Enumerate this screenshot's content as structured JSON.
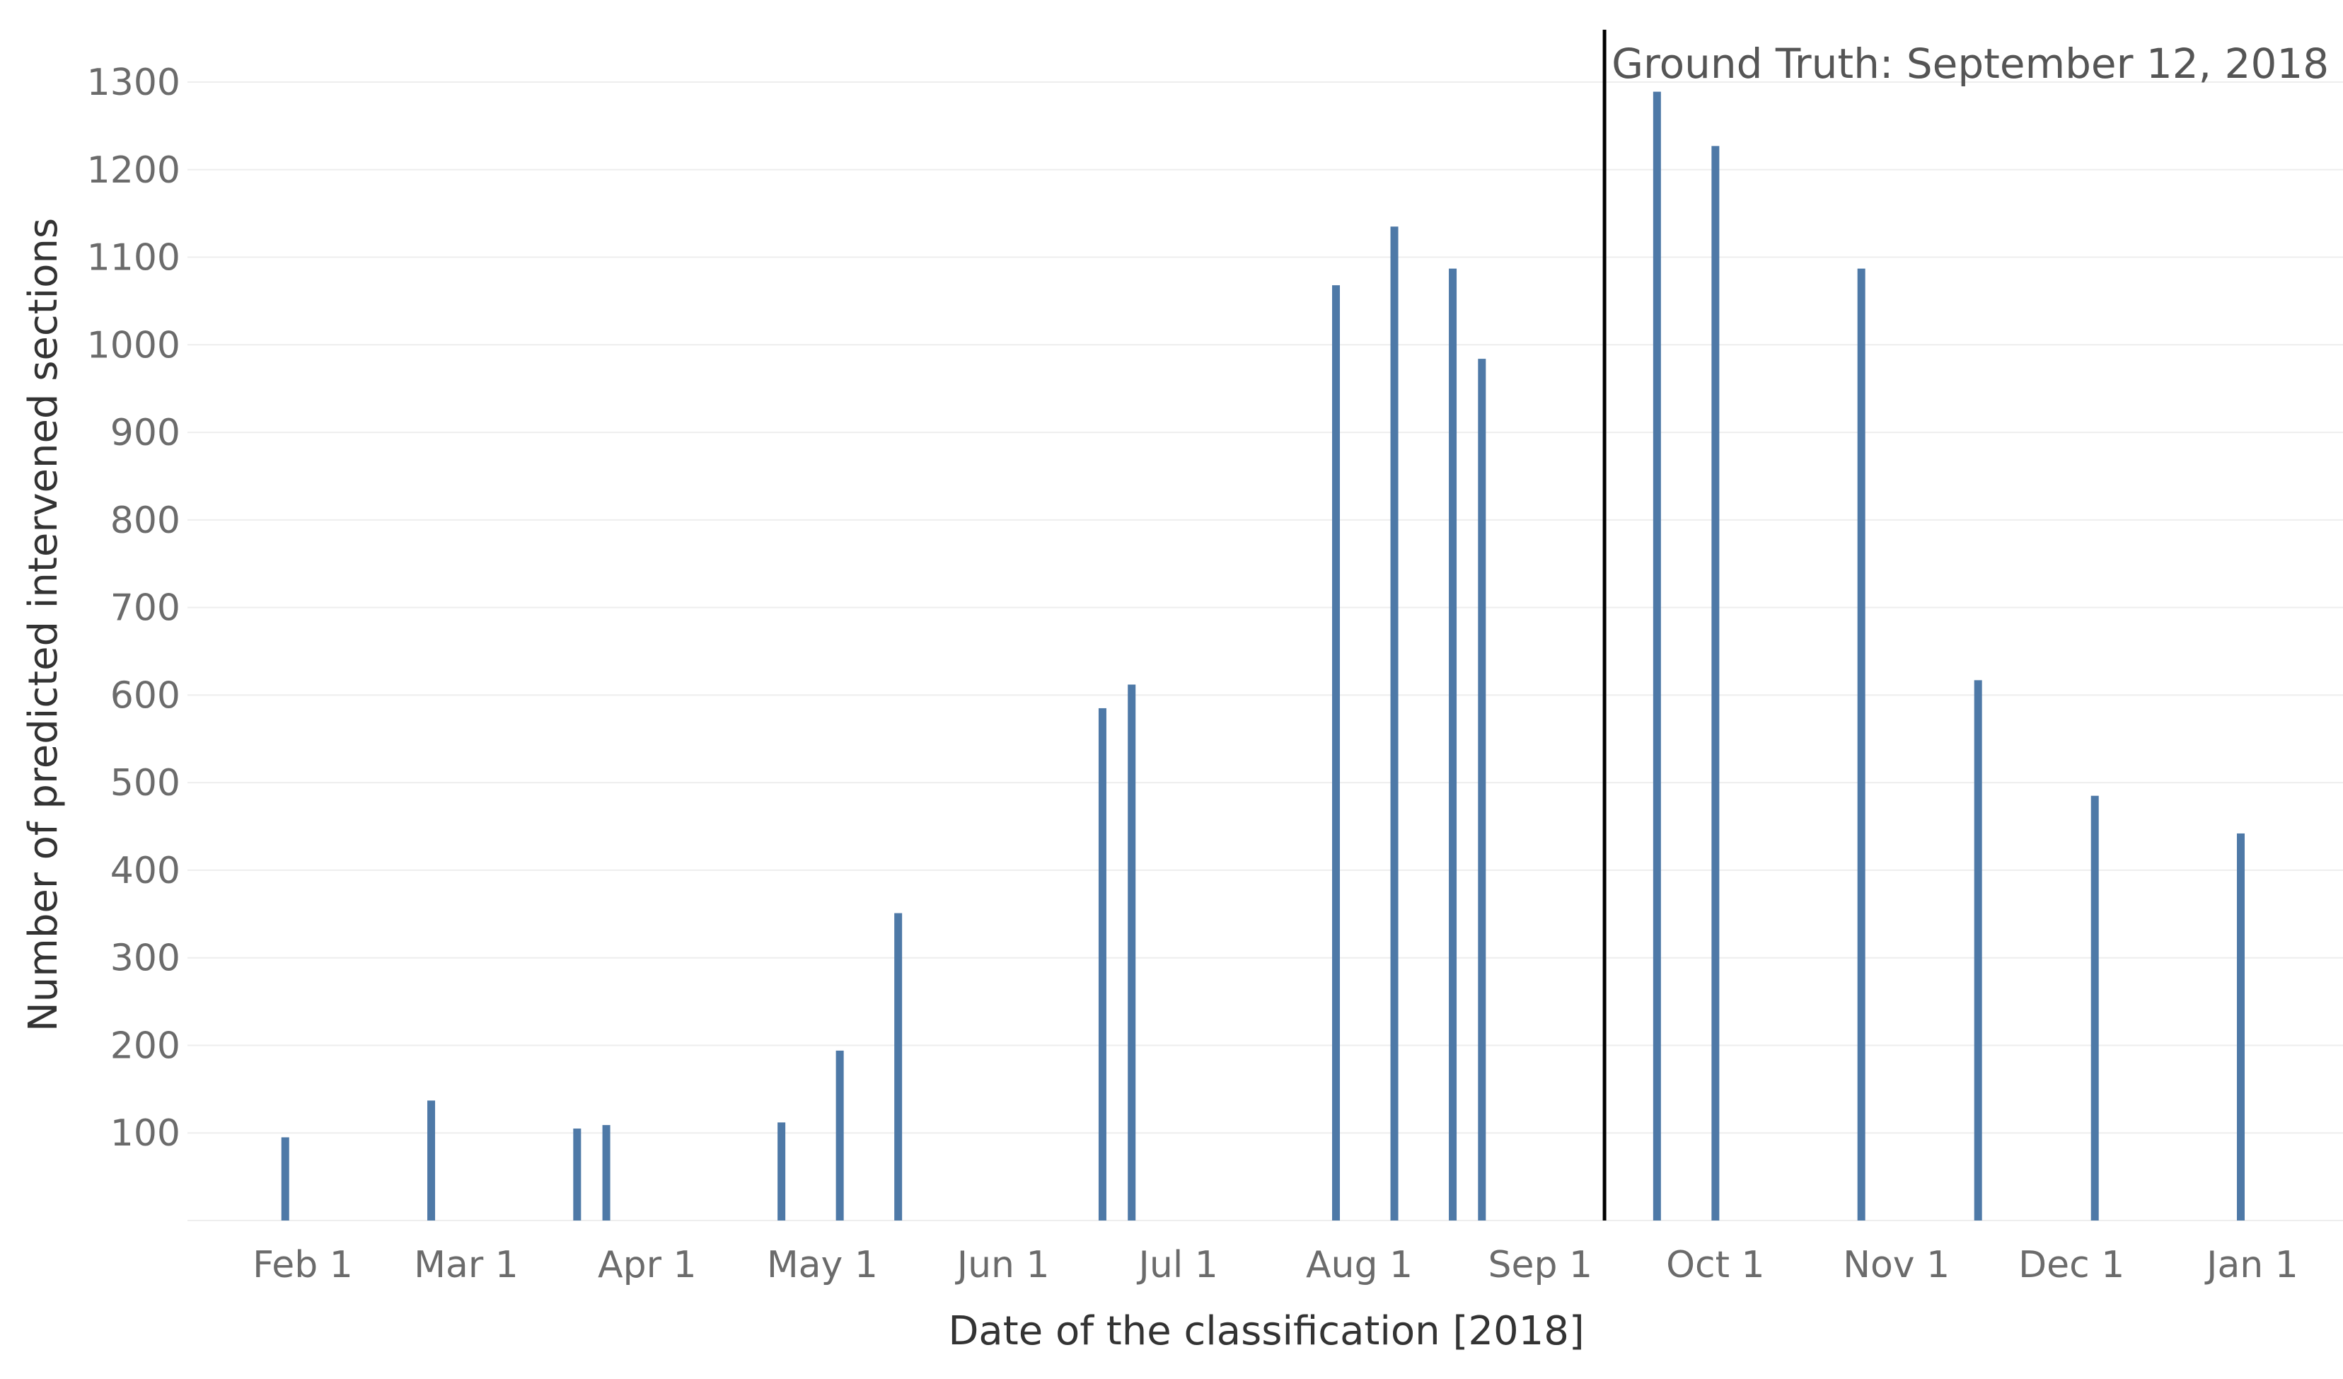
{
  "chart_data": {
    "type": "bar",
    "title": "",
    "xlabel": "Date of the classification [2018]",
    "ylabel": "Number of predicted intervened sections",
    "x_axis": {
      "type": "date",
      "range": [
        "2018-01-10",
        "2018-01-12"
      ],
      "ticks": [
        {
          "date": "2018-02-01",
          "label": "Feb 1"
        },
        {
          "date": "2018-03-01",
          "label": "Mar 1"
        },
        {
          "date": "2018-04-01",
          "label": "Apr 1"
        },
        {
          "date": "2018-05-01",
          "label": "May 1"
        },
        {
          "date": "2018-06-01",
          "label": "Jun 1"
        },
        {
          "date": "2018-07-01",
          "label": "Jul 1"
        },
        {
          "date": "2018-08-01",
          "label": "Aug 1"
        },
        {
          "date": "2018-09-01",
          "label": "Sep 1"
        },
        {
          "date": "2018-10-01",
          "label": "Oct 1"
        },
        {
          "date": "2018-11-01",
          "label": "Nov 1"
        },
        {
          "date": "2018-12-01",
          "label": "Dec 1"
        },
        {
          "date": "2019-01-01",
          "label": "Jan 1"
        }
      ]
    },
    "y_axis": {
      "range": [
        0,
        1300
      ],
      "ticks": [
        100,
        200,
        300,
        400,
        500,
        600,
        700,
        800,
        900,
        1000,
        1100,
        1200,
        1300
      ]
    },
    "grid": true,
    "series": [
      {
        "points": [
          {
            "date": "2018-01-29",
            "value": 95
          },
          {
            "date": "2018-02-23",
            "value": 137
          },
          {
            "date": "2018-03-20",
            "value": 105
          },
          {
            "date": "2018-03-25",
            "value": 109
          },
          {
            "date": "2018-04-24",
            "value": 112
          },
          {
            "date": "2018-05-04",
            "value": 194
          },
          {
            "date": "2018-05-14",
            "value": 351
          },
          {
            "date": "2018-06-18",
            "value": 585
          },
          {
            "date": "2018-06-23",
            "value": 612
          },
          {
            "date": "2018-07-28",
            "value": 1068
          },
          {
            "date": "2018-08-07",
            "value": 1135
          },
          {
            "date": "2018-08-17",
            "value": 1087
          },
          {
            "date": "2018-08-22",
            "value": 984
          },
          {
            "date": "2018-09-21",
            "value": 1289
          },
          {
            "date": "2018-10-01",
            "value": 1227
          },
          {
            "date": "2018-10-26",
            "value": 1087
          },
          {
            "date": "2018-11-15",
            "value": 617
          },
          {
            "date": "2018-12-05",
            "value": 485
          },
          {
            "date": "2018-12-30",
            "value": 442
          }
        ]
      }
    ],
    "annotations": [
      {
        "type": "vertical-line",
        "date": "2018-09-12",
        "text": "Ground Truth: September 12, 2018",
        "color": "#000000"
      }
    ],
    "colors": {
      "bar": "#4e79a7",
      "grid": "#eeeeee"
    }
  }
}
